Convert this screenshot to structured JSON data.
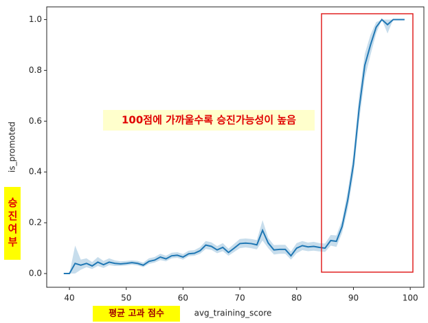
{
  "chart_data": {
    "type": "line",
    "x_label": "avg_training_score",
    "y_label": "is_promoted",
    "annotation": "100점에 가까울수록 승진가능성이 높음",
    "y_note": "승진여부",
    "x_note": "평균 고과 점수",
    "x": [
      39,
      40,
      41,
      42,
      43,
      44,
      45,
      46,
      47,
      48,
      49,
      50,
      51,
      52,
      53,
      54,
      55,
      56,
      57,
      58,
      59,
      60,
      61,
      62,
      63,
      64,
      65,
      66,
      67,
      68,
      69,
      70,
      71,
      72,
      73,
      74,
      75,
      76,
      77,
      78,
      79,
      80,
      81,
      82,
      83,
      84,
      85,
      86,
      87,
      88,
      89,
      90,
      91,
      92,
      93,
      94,
      95,
      96,
      97,
      98,
      99
    ],
    "values": [
      0,
      0,
      0.04,
      0.033,
      0.04,
      0.03,
      0.045,
      0.035,
      0.045,
      0.04,
      0.038,
      0.04,
      0.043,
      0.04,
      0.033,
      0.048,
      0.053,
      0.065,
      0.058,
      0.07,
      0.072,
      0.065,
      0.078,
      0.08,
      0.09,
      0.112,
      0.107,
      0.093,
      0.103,
      0.083,
      0.1,
      0.118,
      0.12,
      0.118,
      0.113,
      0.17,
      0.12,
      0.093,
      0.095,
      0.095,
      0.07,
      0.1,
      0.11,
      0.105,
      0.107,
      0.103,
      0.1,
      0.13,
      0.127,
      0.185,
      0.29,
      0.43,
      0.65,
      0.82,
      0.9,
      0.97,
      1.0,
      0.98,
      1.0,
      1.0,
      1.0
    ],
    "ci_lower": [
      0,
      0,
      0.0,
      0.015,
      0.025,
      0.018,
      0.03,
      0.022,
      0.033,
      0.03,
      0.03,
      0.032,
      0.035,
      0.032,
      0.025,
      0.038,
      0.043,
      0.053,
      0.048,
      0.06,
      0.062,
      0.055,
      0.068,
      0.07,
      0.078,
      0.097,
      0.093,
      0.08,
      0.088,
      0.07,
      0.085,
      0.1,
      0.103,
      0.1,
      0.095,
      0.13,
      0.1,
      0.075,
      0.078,
      0.078,
      0.055,
      0.08,
      0.092,
      0.088,
      0.09,
      0.087,
      0.085,
      0.11,
      0.105,
      0.16,
      0.255,
      0.39,
      0.6,
      0.77,
      0.86,
      0.945,
      1.0,
      0.945,
      1.0,
      1.0,
      1.0
    ],
    "ci_upper": [
      0,
      0,
      0.11,
      0.055,
      0.06,
      0.045,
      0.065,
      0.05,
      0.06,
      0.052,
      0.048,
      0.05,
      0.052,
      0.05,
      0.043,
      0.06,
      0.065,
      0.078,
      0.07,
      0.082,
      0.084,
      0.077,
      0.09,
      0.092,
      0.104,
      0.128,
      0.123,
      0.108,
      0.12,
      0.098,
      0.117,
      0.136,
      0.138,
      0.136,
      0.132,
      0.21,
      0.14,
      0.112,
      0.113,
      0.113,
      0.087,
      0.12,
      0.128,
      0.122,
      0.125,
      0.12,
      0.118,
      0.152,
      0.15,
      0.21,
      0.325,
      0.47,
      0.7,
      0.865,
      0.94,
      0.99,
      1.0,
      1.0,
      1.0,
      1.0,
      1.0
    ],
    "color": "#1f77b4",
    "xlim": [
      36,
      102.4
    ],
    "ylim": [
      -0.054,
      1.05
    ],
    "xticks": [
      40,
      50,
      60,
      70,
      80,
      90,
      100
    ],
    "yticks": [
      {
        "value": 0,
        "label": "0.0"
      },
      {
        "value": 0.2,
        "label": "0.2"
      },
      {
        "value": 0.4,
        "label": "0.4"
      },
      {
        "value": 0.6,
        "label": "0.6"
      },
      {
        "value": 0.8,
        "label": "0.8"
      },
      {
        "value": 1,
        "label": "1.0"
      }
    ]
  }
}
